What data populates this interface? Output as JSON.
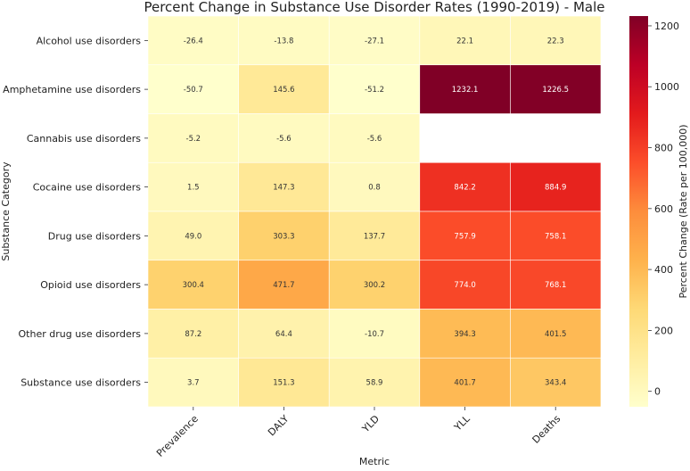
{
  "chart_data": {
    "type": "heatmap",
    "title": "Percent Change in Substance Use Disorder Rates (1990-2019) - Male",
    "xlabel": "Metric",
    "ylabel": "Substance Category",
    "colorbar_label": "Percent Change (Rate per 100,000)",
    "colormap": "YlOrRd",
    "color_range": [
      -50.7,
      1232.1
    ],
    "colorbar_ticks": [
      0,
      200,
      400,
      600,
      800,
      1000,
      1200
    ],
    "x_categories": [
      "Prevalence",
      "DALY",
      "YLD",
      "YLL",
      "Deaths"
    ],
    "y_categories": [
      "Alcohol use disorders",
      "Amphetamine use disorders",
      "Cannabis use disorders",
      "Cocaine use disorders",
      "Drug use disorders",
      "Opioid use disorders",
      "Other drug use disorders",
      "Substance use disorders"
    ],
    "values": [
      [
        -26.4,
        -13.8,
        -27.1,
        22.1,
        22.3
      ],
      [
        -50.7,
        145.6,
        -51.2,
        1232.1,
        1226.5
      ],
      [
        -5.2,
        -5.6,
        -5.6,
        null,
        null
      ],
      [
        1.5,
        147.3,
        0.8,
        842.2,
        884.9
      ],
      [
        49.0,
        303.3,
        137.7,
        757.9,
        758.1
      ],
      [
        300.4,
        471.7,
        300.2,
        774.0,
        768.1
      ],
      [
        87.2,
        64.4,
        -10.7,
        394.3,
        401.5
      ],
      [
        3.7,
        151.3,
        58.9,
        401.7,
        343.4
      ]
    ],
    "value_labels": [
      [
        "-26.4",
        "-13.8",
        "-27.1",
        "22.1",
        "22.3"
      ],
      [
        "-50.7",
        "145.6",
        "-51.2",
        "1232.1",
        "1226.5"
      ],
      [
        "-5.2",
        "-5.6",
        "-5.6",
        "",
        ""
      ],
      [
        "1.5",
        "147.3",
        "0.8",
        "842.2",
        "884.9"
      ],
      [
        "49.0",
        "303.3",
        "137.7",
        "757.9",
        "758.1"
      ],
      [
        "300.4",
        "471.7",
        "300.2",
        "774.0",
        "768.1"
      ],
      [
        "87.2",
        "64.4",
        "-10.7",
        "394.3",
        "401.5"
      ],
      [
        "3.7",
        "151.3",
        "58.9",
        "401.7",
        "343.4"
      ]
    ],
    "missing_cells": "blank"
  }
}
